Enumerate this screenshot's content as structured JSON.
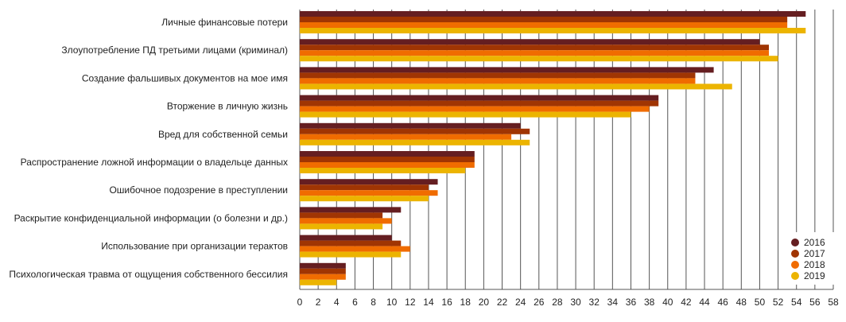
{
  "chart_data": {
    "type": "bar",
    "orientation": "horizontal",
    "title": "",
    "xlabel": "",
    "ylabel": "",
    "xlim": [
      0,
      58
    ],
    "x_ticks": [
      0,
      2,
      4,
      6,
      8,
      10,
      12,
      14,
      16,
      18,
      20,
      22,
      24,
      26,
      28,
      30,
      32,
      34,
      36,
      38,
      40,
      42,
      44,
      46,
      48,
      50,
      52,
      54,
      56,
      58
    ],
    "grid": true,
    "legend_position": "bottom-right",
    "categories": [
      "Личные финансовые потери",
      "Злоупотребление ПД третьими лицами (криминал)",
      "Создание фальшивых документов на мое имя",
      "Вторжение в личную жизнь",
      "Вред для собственной семьи",
      "Распространение ложной информации о владельце данных",
      "Ошибочное подозрение в преступлении",
      "Раскрытие конфиденциальной информации (о болезни и др.)",
      "Использование при организации терактов",
      "Психологическая травма от ощущения собственного бессилия"
    ],
    "series": [
      {
        "name": "2016",
        "color": "#651e21",
        "values": [
          55,
          50,
          45,
          39,
          24,
          19,
          15,
          11,
          10,
          5
        ]
      },
      {
        "name": "2017",
        "color": "#a03503",
        "values": [
          53,
          51,
          43,
          39,
          25,
          19,
          14,
          9,
          11,
          5
        ]
      },
      {
        "name": "2018",
        "color": "#f06c00",
        "values": [
          53,
          51,
          43,
          38,
          23,
          19,
          15,
          10,
          12,
          5
        ]
      },
      {
        "name": "2019",
        "color": "#ecb400",
        "values": [
          55,
          52,
          47,
          36,
          25,
          18,
          14,
          9,
          11,
          4
        ]
      }
    ]
  }
}
